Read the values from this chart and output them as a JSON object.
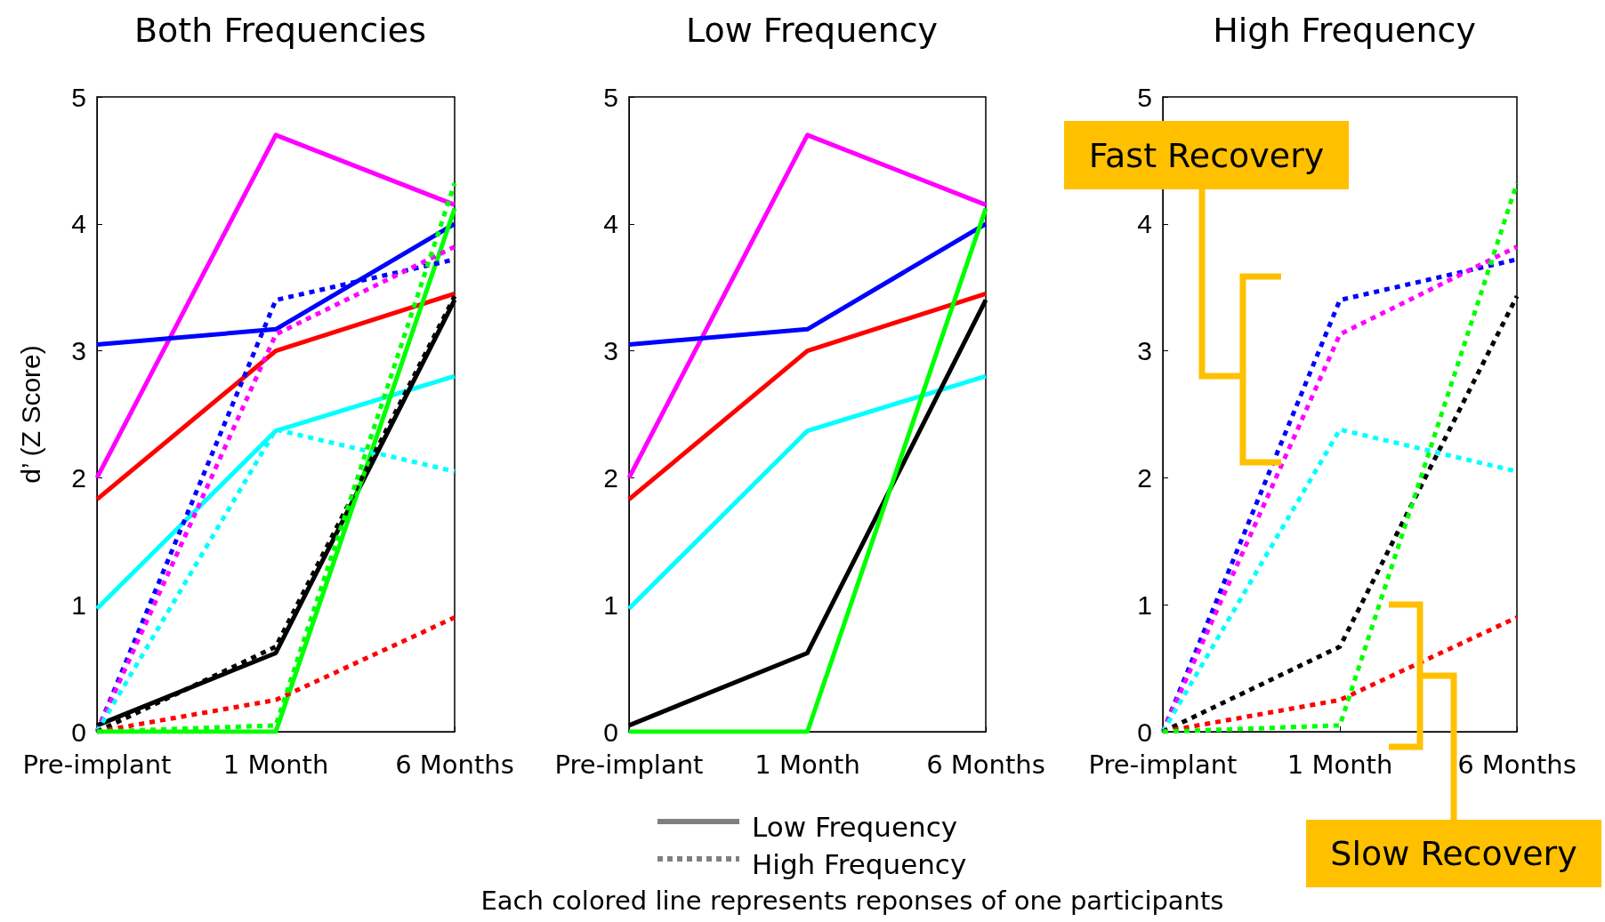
{
  "chart_data": [
    {
      "type": "line",
      "title": "Both Frequencies",
      "ylabel": "d’ (Z Score)",
      "categories": [
        "Pre-implant",
        "1 Month",
        "6 Months"
      ],
      "ylim": [
        0,
        5
      ],
      "yticks": [
        0,
        1,
        2,
        3,
        4,
        5
      ],
      "grid": false,
      "marker": "none",
      "series": [
        {
          "color": "#ff00ff",
          "line_style": "solid",
          "values": [
            2.0,
            4.7,
            4.15
          ]
        },
        {
          "color": "#0000ff",
          "line_style": "solid",
          "values": [
            3.05,
            3.17,
            4.0
          ]
        },
        {
          "color": "#ff0000",
          "line_style": "solid",
          "values": [
            1.83,
            3.0,
            3.45
          ]
        },
        {
          "color": "#00ffff",
          "line_style": "solid",
          "values": [
            0.97,
            2.37,
            2.8
          ]
        },
        {
          "color": "#000000",
          "line_style": "solid",
          "values": [
            0.05,
            0.62,
            3.4
          ]
        },
        {
          "color": "#00ff00",
          "line_style": "solid",
          "values": [
            0,
            0,
            4.12
          ]
        },
        {
          "color": "#0000ff",
          "line_style": "dotted",
          "values": [
            0,
            3.4,
            3.72
          ]
        },
        {
          "color": "#ff00ff",
          "line_style": "dotted",
          "values": [
            0,
            3.13,
            3.82
          ]
        },
        {
          "color": "#00ffff",
          "line_style": "dotted",
          "values": [
            0,
            2.38,
            2.05
          ]
        },
        {
          "color": "#000000",
          "line_style": "dotted",
          "values": [
            0,
            0.67,
            3.43
          ]
        },
        {
          "color": "#ff0000",
          "line_style": "dotted",
          "values": [
            0,
            0.25,
            0.9
          ]
        },
        {
          "color": "#00ff00",
          "line_style": "dotted",
          "values": [
            0,
            0.05,
            4.32
          ]
        }
      ]
    },
    {
      "type": "line",
      "title": "Low Frequency",
      "categories": [
        "Pre-implant",
        "1 Month",
        "6 Months"
      ],
      "ylim": [
        0,
        5
      ],
      "yticks": [
        0,
        1,
        2,
        3,
        4,
        5
      ],
      "grid": false,
      "marker": "none",
      "annotations": [
        "Low Frequency",
        "High Frequency",
        "Each colored line represents reponses of one participants"
      ],
      "series": [
        {
          "color": "#ff00ff",
          "line_style": "solid",
          "values": [
            2.0,
            4.7,
            4.15
          ]
        },
        {
          "color": "#0000ff",
          "line_style": "solid",
          "values": [
            3.05,
            3.17,
            4.0
          ]
        },
        {
          "color": "#ff0000",
          "line_style": "solid",
          "values": [
            1.83,
            3.0,
            3.45
          ]
        },
        {
          "color": "#00ffff",
          "line_style": "solid",
          "values": [
            0.97,
            2.37,
            2.8
          ]
        },
        {
          "color": "#000000",
          "line_style": "solid",
          "values": [
            0.05,
            0.62,
            3.4
          ]
        },
        {
          "color": "#00ff00",
          "line_style": "solid",
          "values": [
            0,
            0,
            4.12
          ]
        }
      ]
    },
    {
      "type": "line",
      "title": "High Frequency",
      "categories": [
        "Pre-implant",
        "1 Month",
        "6 Months"
      ],
      "ylim": [
        0,
        5
      ],
      "yticks": [
        0,
        1,
        2,
        3,
        4,
        5
      ],
      "grid": false,
      "marker": "none",
      "annotations": [
        "Fast Recovery",
        "Slow Recovery"
      ],
      "series": [
        {
          "color": "#0000ff",
          "line_style": "dotted",
          "values": [
            0,
            3.4,
            3.72
          ]
        },
        {
          "color": "#ff00ff",
          "line_style": "dotted",
          "values": [
            0,
            3.13,
            3.82
          ]
        },
        {
          "color": "#00ffff",
          "line_style": "dotted",
          "values": [
            0,
            2.38,
            2.05
          ]
        },
        {
          "color": "#000000",
          "line_style": "dotted",
          "values": [
            0,
            0.67,
            3.43
          ]
        },
        {
          "color": "#ff0000",
          "line_style": "dotted",
          "values": [
            0,
            0.25,
            0.9
          ]
        },
        {
          "color": "#00ff00",
          "line_style": "dotted",
          "values": [
            0,
            0.05,
            4.32
          ]
        }
      ]
    }
  ]
}
